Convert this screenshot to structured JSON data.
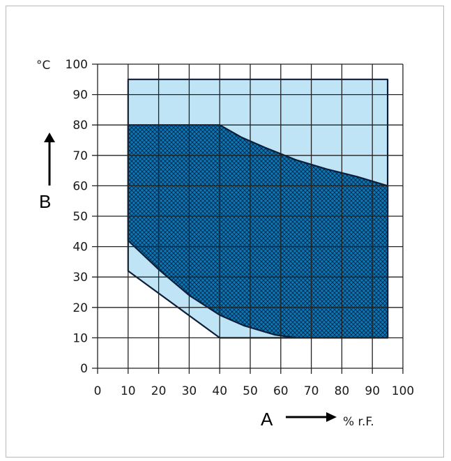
{
  "chart_data": {
    "type": "area",
    "title": "",
    "xlabel": "% r.F.",
    "ylabel": "°C",
    "xlim": [
      0,
      100
    ],
    "ylim": [
      0,
      100
    ],
    "x_ticks": [
      "0",
      "10",
      "20",
      "30",
      "40",
      "50",
      "60",
      "70",
      "80",
      "90",
      "100"
    ],
    "y_ticks": [
      "0",
      "10",
      "20",
      "30",
      "40",
      "50",
      "60",
      "70",
      "80",
      "90",
      "100"
    ],
    "grid": true,
    "x_arrow_label": "A",
    "y_arrow_label": "B",
    "series": [
      {
        "fill_color": "#bfe4f5",
        "points": [
          [
            10,
            95
          ],
          [
            95,
            95
          ],
          [
            95,
            10
          ],
          [
            40,
            10
          ],
          [
            10,
            32
          ]
        ]
      },
      {
        "fill_color": "#0b78b8",
        "hatch": "crosshatch",
        "points": [
          [
            10,
            80
          ],
          [
            40,
            80
          ],
          [
            47,
            76
          ],
          [
            55,
            72.5
          ],
          [
            65,
            68.5
          ],
          [
            75,
            65.5
          ],
          [
            85,
            63
          ],
          [
            95,
            60
          ],
          [
            95,
            10
          ],
          [
            65,
            10
          ],
          [
            58,
            11
          ],
          [
            48,
            14
          ],
          [
            40,
            17.5
          ],
          [
            30,
            24
          ],
          [
            20,
            32.5
          ],
          [
            10,
            42
          ]
        ]
      }
    ],
    "colors": {
      "light": "#bfe4f5",
      "dark": "#0b78b8",
      "grid": "#222222"
    }
  }
}
